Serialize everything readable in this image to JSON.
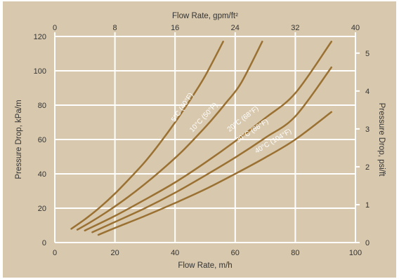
{
  "chart_data": {
    "type": "line",
    "title": "",
    "xlabel": "Flow Rate, m/h",
    "ylabel": "Pressure Drop, kPa/m",
    "x2label": "Flow Rate, gpm/ft²",
    "y2label": "Pressure Drop, psi/ft",
    "xlim": [
      0,
      100
    ],
    "ylim": [
      0,
      120
    ],
    "x2lim": [
      0,
      40
    ],
    "y2lim": [
      0,
      5.44
    ],
    "xticks": [
      0,
      20,
      40,
      60,
      80,
      100
    ],
    "yticks": [
      0,
      20,
      40,
      60,
      80,
      100,
      120
    ],
    "x2ticks": [
      0,
      8,
      16,
      24,
      32,
      40
    ],
    "y2ticks": [
      0,
      1,
      2,
      3,
      4,
      5
    ],
    "grid": true,
    "series": [
      {
        "name": "5°C (40°F)",
        "x": [
          5.5,
          10,
          15,
          20,
          25,
          30,
          35,
          40,
          45,
          50,
          56
        ],
        "y": [
          8,
          13.5,
          20.5,
          28.5,
          37.5,
          47,
          58,
          70,
          83,
          97,
          117
        ],
        "label_at": [
          43,
          78
        ]
      },
      {
        "name": "10°C (50°F)",
        "x": [
          7.5,
          12,
          17,
          22,
          27,
          32,
          37,
          42,
          47,
          52,
          57,
          62,
          69
        ],
        "y": [
          7.5,
          12,
          17.5,
          23.5,
          30,
          37,
          44.5,
          52.5,
          61.5,
          71,
          81.5,
          93,
          117
        ],
        "label_at": [
          50,
          72
        ]
      },
      {
        "name": "20°C (68°F)",
        "x": [
          10,
          20,
          30,
          40,
          50,
          60,
          70,
          80,
          92
        ],
        "y": [
          7,
          15.5,
          25,
          35,
          46.5,
          59,
          72.5,
          87,
          117
        ],
        "label_at": [
          63,
          71
        ]
      },
      {
        "name": "30°C (86°F)",
        "x": [
          12.5,
          20,
          30,
          40,
          50,
          60,
          70,
          80,
          92
        ],
        "y": [
          6,
          12,
          20,
          29,
          39,
          49.5,
          61,
          73.5,
          102
        ],
        "label_at": [
          66,
          64
        ]
      },
      {
        "name": "40°C (104°F)",
        "x": [
          14.5,
          20,
          30,
          40,
          50,
          60,
          70,
          80,
          92
        ],
        "y": [
          4.5,
          8.5,
          15.5,
          23,
          31,
          40,
          49.5,
          60,
          76
        ],
        "label_at": [
          73,
          58
        ]
      }
    ],
    "colors": {
      "line": "#9a7132",
      "background": "#d8c8ad",
      "grid": "#ffffff",
      "text": "#333333"
    }
  }
}
